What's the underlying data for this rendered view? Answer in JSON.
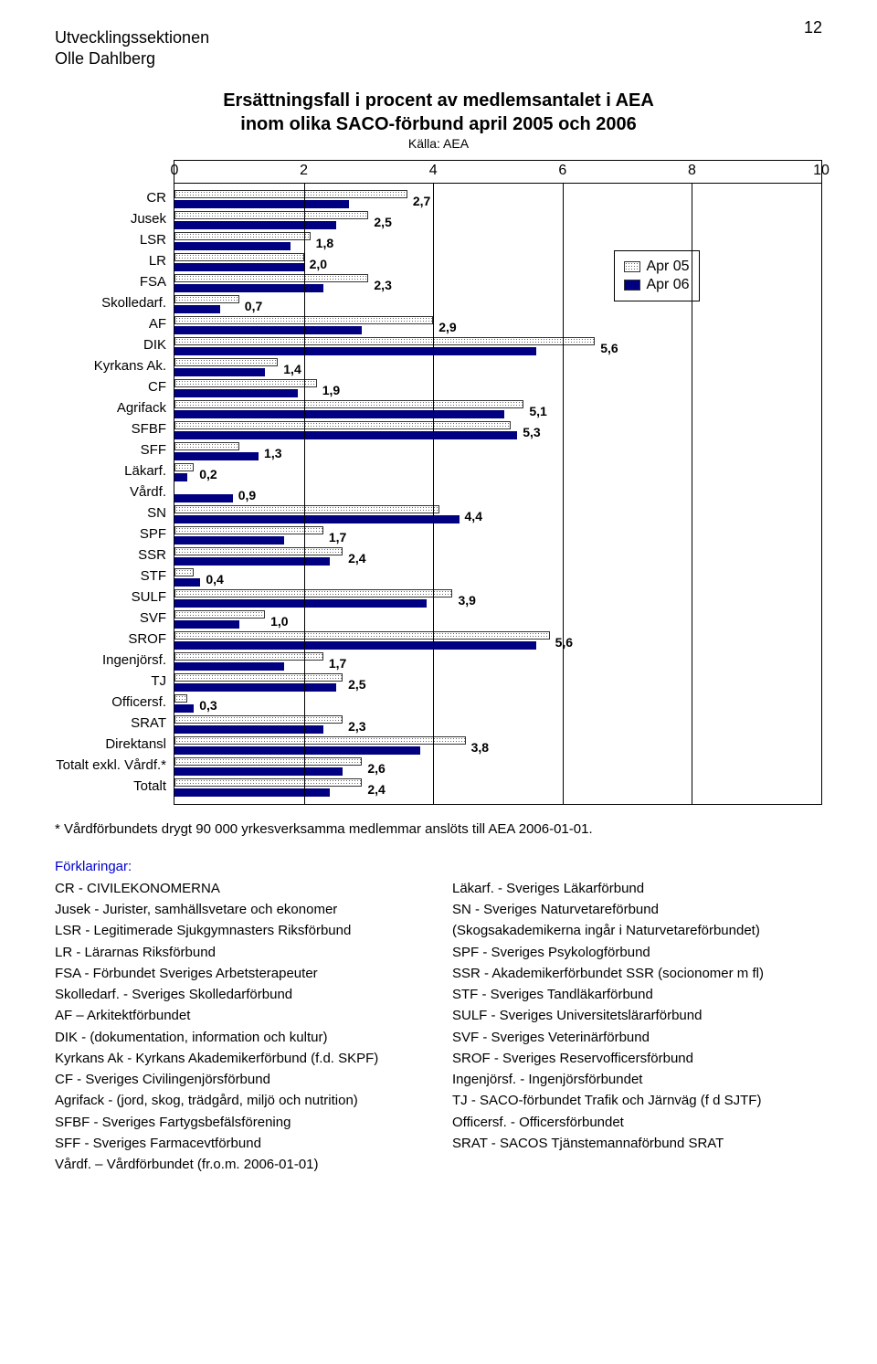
{
  "page_number": "12",
  "header_line1": "Utvecklingssektionen",
  "header_line2": "Olle Dahlberg",
  "chart": {
    "type": "bar-horizontal-grouped",
    "title_line1": "Ersättningsfall i procent av medlemsantalet i AEA",
    "title_line2": "inom olika SACO-förbund april 2005 och 2006",
    "subtitle": "Källa: AEA",
    "x_min": 0,
    "x_max": 10,
    "x_ticks": [
      0,
      2,
      4,
      6,
      8,
      10
    ],
    "series": [
      {
        "key": "apr05",
        "label": "Apr 05",
        "pattern": "dots",
        "color": "#ffffff",
        "border": "#333333"
      },
      {
        "key": "apr06",
        "label": "Apr 06",
        "pattern": "solid",
        "color": "#000080",
        "border": "#000080"
      }
    ],
    "legend_top_pct": 14,
    "legend_left_pct": 68,
    "label_fontsize": 14,
    "label_fontweight": "bold",
    "categories": [
      {
        "label": "CR",
        "v05": 3.6,
        "v06": 2.7
      },
      {
        "label": "Jusek",
        "v05": 3.0,
        "v06": 2.5
      },
      {
        "label": "LSR",
        "v05": 2.1,
        "v06": 1.8
      },
      {
        "label": "LR",
        "v05": 2.0,
        "v06": 2.0
      },
      {
        "label": "FSA",
        "v05": 3.0,
        "v06": 2.3
      },
      {
        "label": "Skolledarf.",
        "v05": 1.0,
        "v06": 0.7
      },
      {
        "label": "AF",
        "v05": 4.0,
        "v06": 2.9
      },
      {
        "label": "DIK",
        "v05": 6.5,
        "v06": 5.6
      },
      {
        "label": "Kyrkans Ak.",
        "v05": 1.6,
        "v06": 1.4
      },
      {
        "label": "CF",
        "v05": 2.2,
        "v06": 1.9
      },
      {
        "label": "Agrifack",
        "v05": 5.4,
        "v06": 5.1
      },
      {
        "label": "SFBF",
        "v05": 5.2,
        "v06": 5.3
      },
      {
        "label": "SFF",
        "v05": 1.0,
        "v06": 1.3
      },
      {
        "label": "Läkarf.",
        "v05": 0.3,
        "v06": 0.2
      },
      {
        "label": "Vårdf.",
        "v05": null,
        "v06": 0.9
      },
      {
        "label": "SN",
        "v05": 4.1,
        "v06": 4.4
      },
      {
        "label": "SPF",
        "v05": 2.3,
        "v06": 1.7
      },
      {
        "label": "SSR",
        "v05": 2.6,
        "v06": 2.4
      },
      {
        "label": "STF",
        "v05": 0.3,
        "v06": 0.4
      },
      {
        "label": "SULF",
        "v05": 4.3,
        "v06": 3.9
      },
      {
        "label": "SVF",
        "v05": 1.4,
        "v06": 1.0
      },
      {
        "label": "SROF",
        "v05": 5.8,
        "v06": 5.6
      },
      {
        "label": "Ingenjörsf.",
        "v05": 2.3,
        "v06": 1.7
      },
      {
        "label": "TJ",
        "v05": 2.6,
        "v06": 2.5
      },
      {
        "label": "Officersf.",
        "v05": 0.2,
        "v06": 0.3
      },
      {
        "label": "SRAT",
        "v05": 2.6,
        "v06": 2.3
      },
      {
        "label": "Direktansl",
        "v05": 4.5,
        "v06": 3.8
      },
      {
        "label": "Totalt exkl. Vårdf.*",
        "v05": 2.9,
        "v06": 2.6
      },
      {
        "label": "Totalt",
        "v05": 2.9,
        "v06": 2.4
      }
    ]
  },
  "footnote": "* Vårdförbundets drygt 90 000 yrkesverksamma medlemmar anslöts till AEA 2006-01-01.",
  "explain_head": "Förklaringar:",
  "explain_left": [
    "CR - CIVILEKONOMERNA",
    "Jusek - Jurister, samhällsvetare och ekonomer",
    "LSR - Legitimerade Sjukgymnasters Riksförbund",
    "LR - Lärarnas Riksförbund",
    "FSA - Förbundet Sveriges Arbetsterapeuter",
    "Skolledarf.  - Sveriges Skolledarförbund",
    "AF – Arkitektförbundet",
    "DIK - (dokumentation, information och kultur)",
    "Kyrkans Ak - Kyrkans Akademikerförbund (f.d. SKPF)",
    "CF - Sveriges Civilingenjörsförbund",
    "Agrifack - (jord, skog, trädgård, miljö och nutrition)",
    "SFBF - Sveriges Fartygsbefälsförening",
    "SFF - Sveriges Farmacevtförbund",
    "Vårdf. – Vårdförbundet (fr.o.m. 2006-01-01)"
  ],
  "explain_right": [
    "Läkarf. - Sveriges Läkarförbund",
    "SN - Sveriges Naturvetareförbund",
    "(Skogsakademikerna ingår i Naturvetareförbundet)",
    "SPF - Sveriges Psykologförbund",
    "SSR - Akademikerförbundet SSR (socionomer m fl)",
    "STF - Sveriges Tandläkarförbund",
    "SULF - Sveriges Universitetslärarförbund",
    "SVF - Sveriges Veterinärförbund",
    "SROF - Sveriges Reservofficersförbund",
    "Ingenjörsf.  - Ingenjörsförbundet",
    "TJ - SACO-förbundet Trafik och Järnväg (f d SJTF)",
    "Officersf. - Officersförbundet",
    "SRAT - SACOS Tjänstemannaförbund SRAT"
  ]
}
